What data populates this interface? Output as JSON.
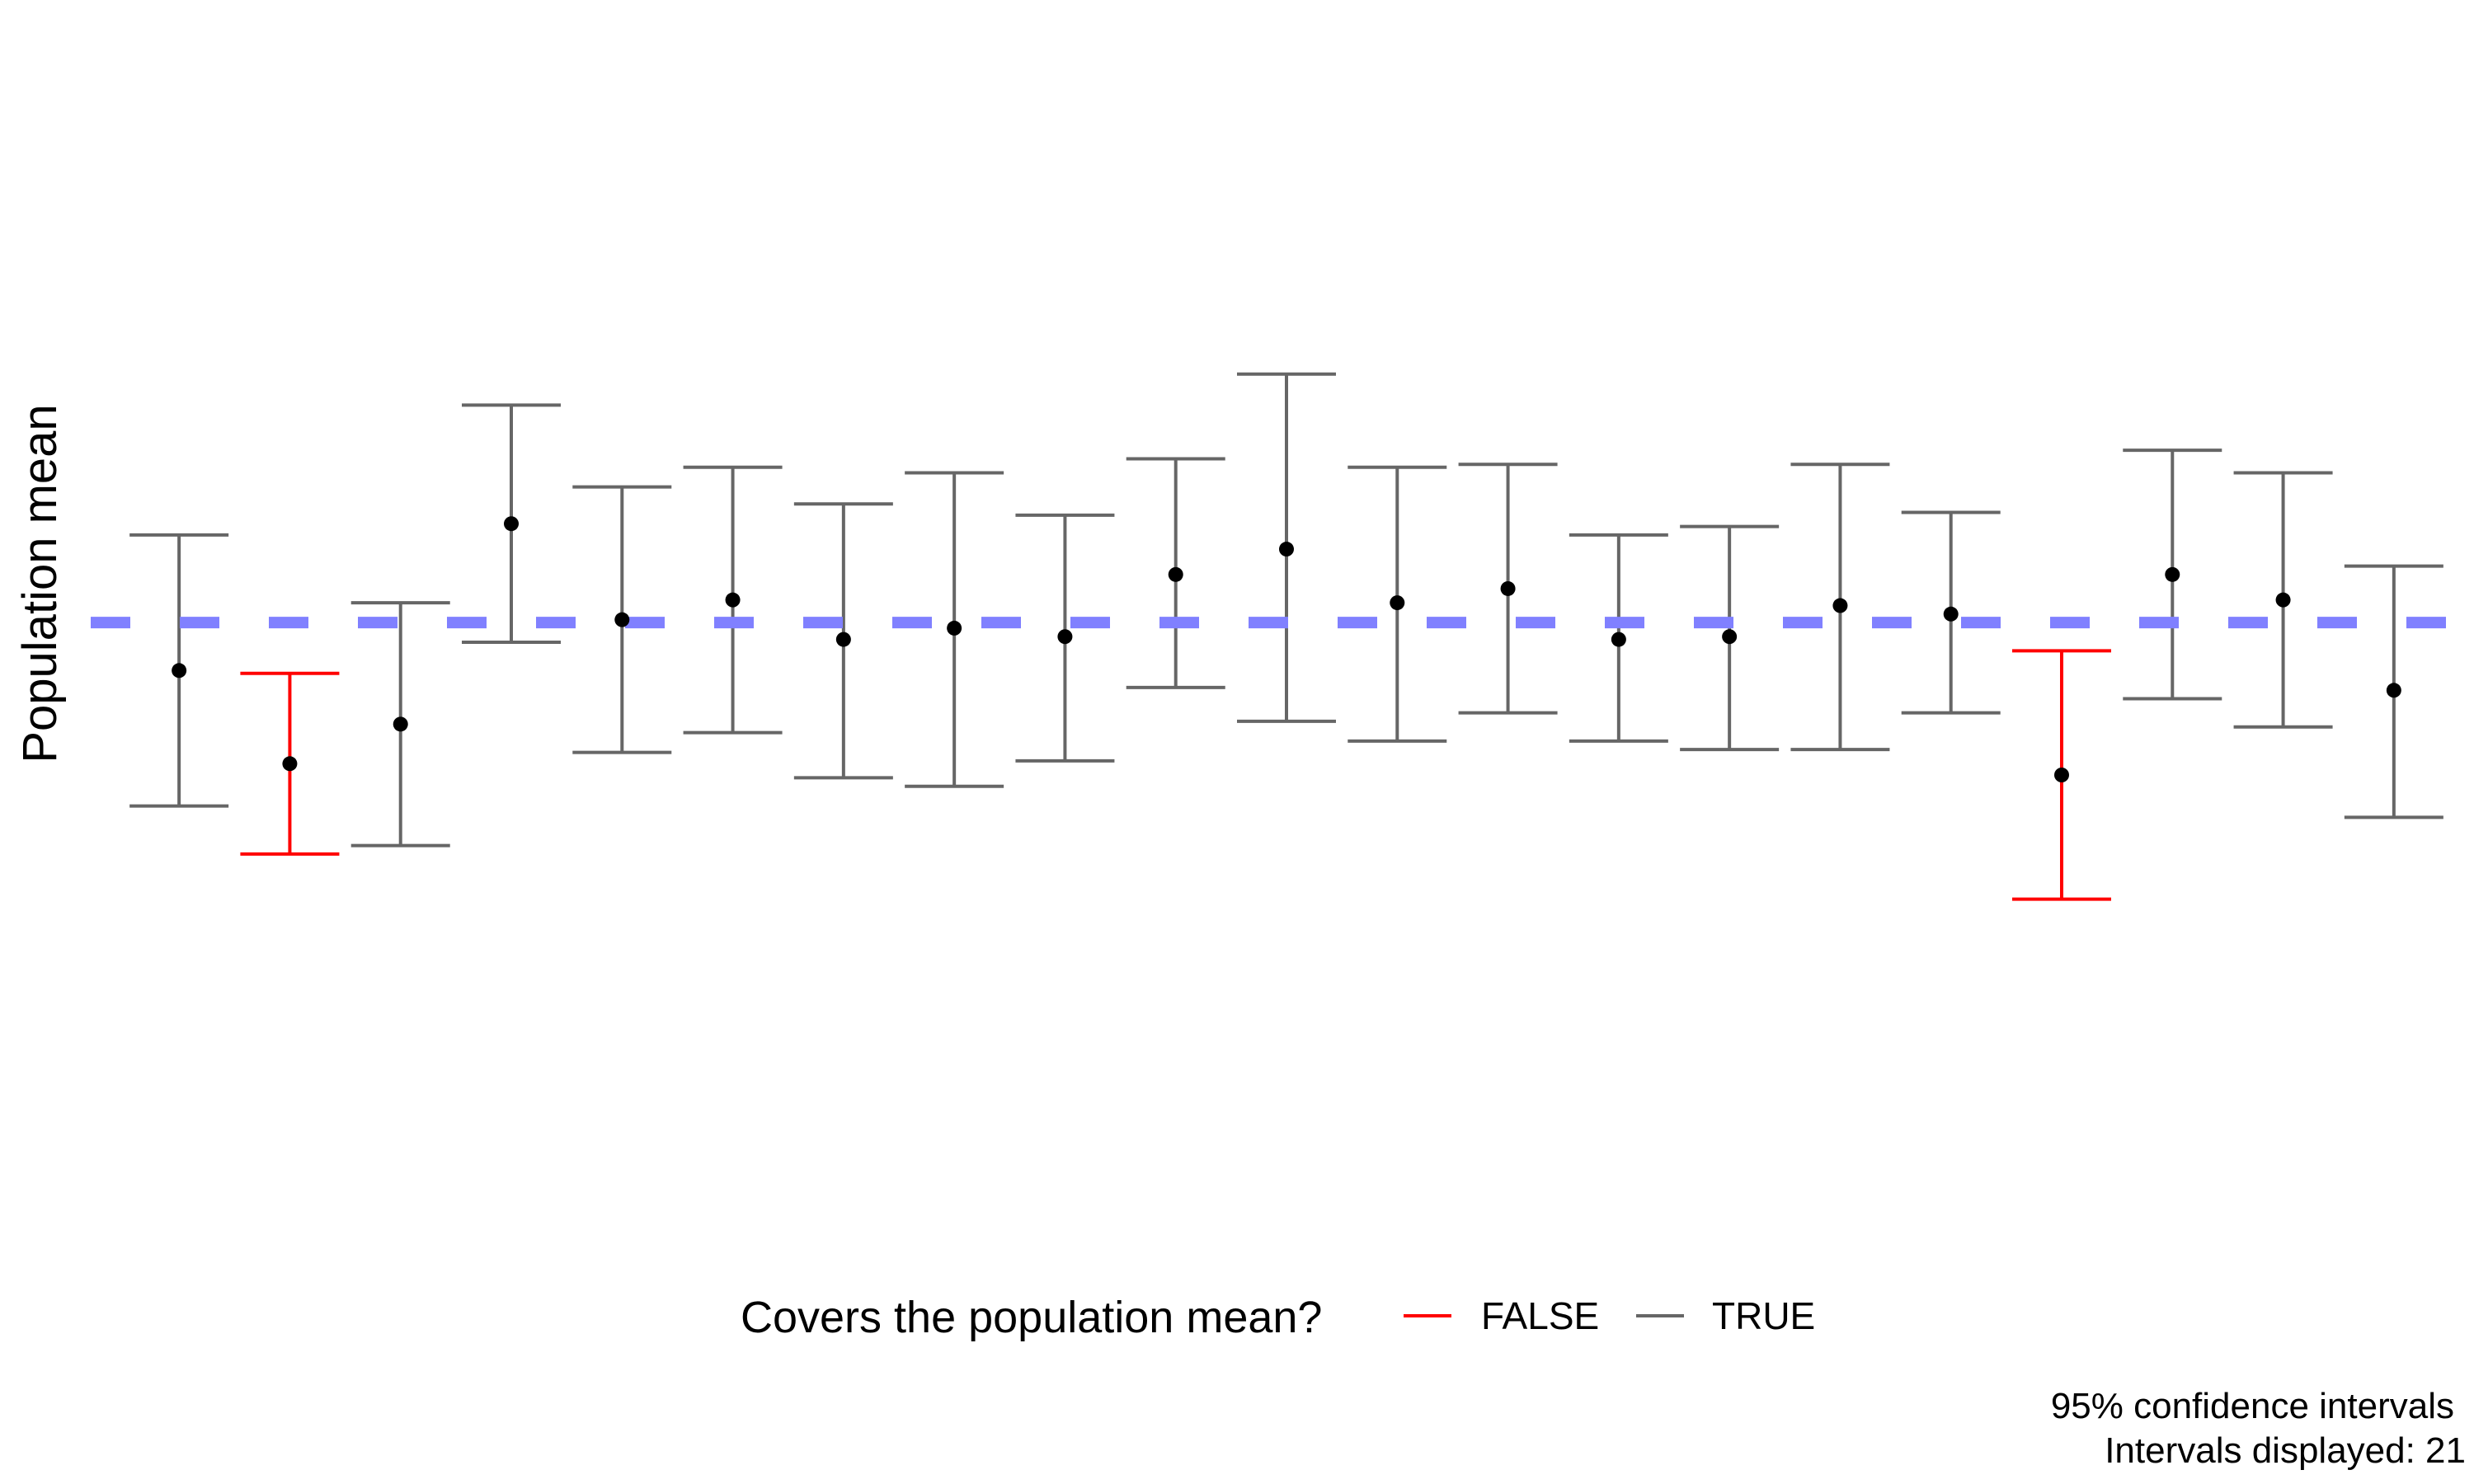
{
  "chart_data": {
    "type": "errorbar",
    "title": "",
    "xlabel": "",
    "ylabel": "Population mean",
    "ylim": [
      -2.0,
      1.65
    ],
    "grid": false,
    "population_mean": 0.0,
    "reference_line_color": "#8080ff",
    "point_color": "#000000",
    "legend": {
      "title": "Covers the population mean?",
      "placement": "bottom",
      "entries": [
        {
          "label": "FALSE",
          "color": "#ff0000"
        },
        {
          "label": "TRUE",
          "color": "#666666"
        }
      ]
    },
    "caption": [
      "95% confidence intervals",
      "Intervals displayed: 21"
    ],
    "intervals": [
      {
        "id": 1,
        "mean": -0.17,
        "lower": -0.65,
        "upper": 0.31,
        "covers": true
      },
      {
        "id": 2,
        "mean": -0.5,
        "lower": -0.82,
        "upper": -0.18,
        "covers": false
      },
      {
        "id": 3,
        "mean": -0.36,
        "lower": -0.79,
        "upper": 0.07,
        "covers": true
      },
      {
        "id": 4,
        "mean": 0.35,
        "lower": -0.07,
        "upper": 0.77,
        "covers": true
      },
      {
        "id": 5,
        "mean": 0.01,
        "lower": -0.46,
        "upper": 0.48,
        "covers": true
      },
      {
        "id": 6,
        "mean": 0.08,
        "lower": -0.39,
        "upper": 0.55,
        "covers": true
      },
      {
        "id": 7,
        "mean": -0.06,
        "lower": -0.55,
        "upper": 0.42,
        "covers": true
      },
      {
        "id": 8,
        "mean": -0.02,
        "lower": -0.58,
        "upper": 0.53,
        "covers": true
      },
      {
        "id": 9,
        "mean": -0.05,
        "lower": -0.49,
        "upper": 0.38,
        "covers": true
      },
      {
        "id": 10,
        "mean": 0.17,
        "lower": -0.23,
        "upper": 0.58,
        "covers": true
      },
      {
        "id": 11,
        "mean": 0.26,
        "lower": -0.35,
        "upper": 0.88,
        "covers": true
      },
      {
        "id": 12,
        "mean": 0.07,
        "lower": -0.42,
        "upper": 0.55,
        "covers": true
      },
      {
        "id": 13,
        "mean": 0.12,
        "lower": -0.32,
        "upper": 0.56,
        "covers": true
      },
      {
        "id": 14,
        "mean": -0.06,
        "lower": -0.42,
        "upper": 0.31,
        "covers": true
      },
      {
        "id": 15,
        "mean": -0.05,
        "lower": -0.45,
        "upper": 0.34,
        "covers": true
      },
      {
        "id": 16,
        "mean": 0.06,
        "lower": -0.45,
        "upper": 0.56,
        "covers": true
      },
      {
        "id": 17,
        "mean": 0.03,
        "lower": -0.32,
        "upper": 0.39,
        "covers": true
      },
      {
        "id": 18,
        "mean": -0.54,
        "lower": -0.98,
        "upper": -0.1,
        "covers": false
      },
      {
        "id": 19,
        "mean": 0.17,
        "lower": -0.27,
        "upper": 0.61,
        "covers": true
      },
      {
        "id": 20,
        "mean": 0.08,
        "lower": -0.37,
        "upper": 0.53,
        "covers": true
      },
      {
        "id": 21,
        "mean": -0.24,
        "lower": -0.69,
        "upper": 0.2,
        "covers": true
      }
    ]
  }
}
